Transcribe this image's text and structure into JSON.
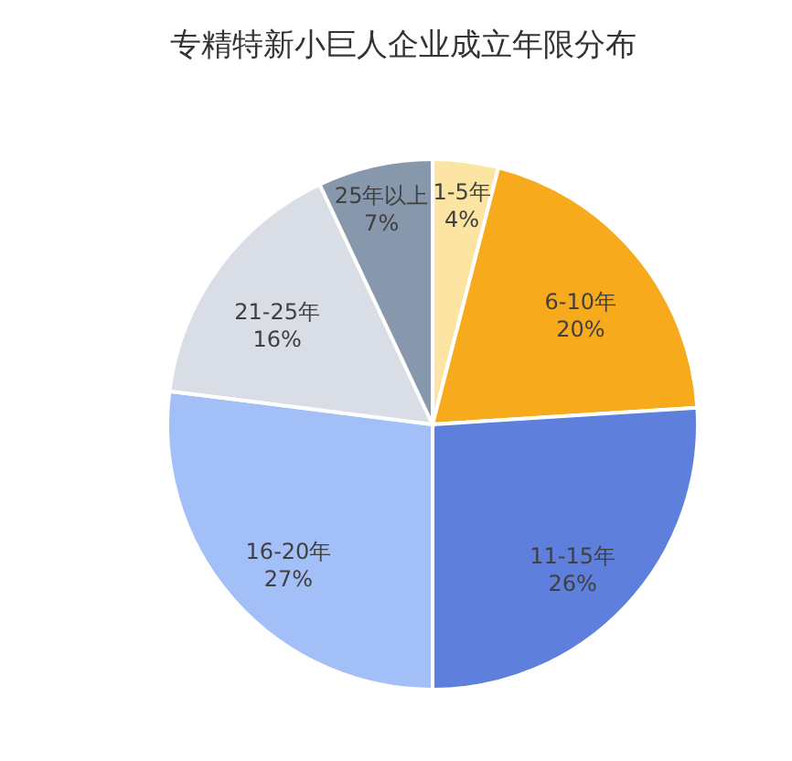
{
  "chart_data": {
    "type": "pie",
    "title": "专精特新小巨人企业成立年限分布",
    "categories": [
      "1-5年",
      "6-10年",
      "11-15年",
      "16-20年",
      "21-25年",
      "25年以上"
    ],
    "values": [
      4,
      20,
      26,
      27,
      16,
      7
    ],
    "value_labels": [
      "4%",
      "20%",
      "26%",
      "27%",
      "16%",
      "7%"
    ],
    "colors": [
      "#fce4a3",
      "#f7ab1c",
      "#5e7fdb",
      "#a3bff7",
      "#d8dde6",
      "#8797ac"
    ],
    "legend": false
  }
}
